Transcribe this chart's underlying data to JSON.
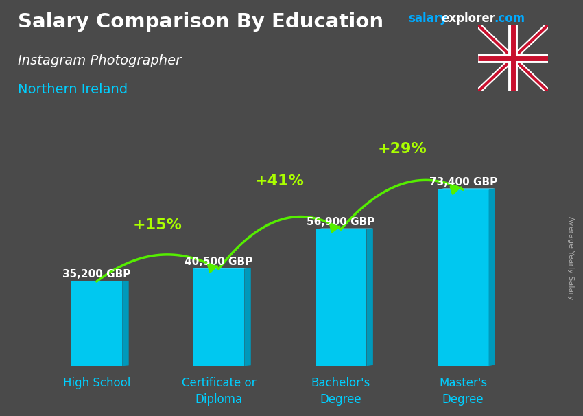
{
  "title": "Salary Comparison By Education",
  "subtitle1": "Instagram Photographer",
  "subtitle2": "Northern Ireland",
  "watermark_salary": "salary",
  "watermark_explorer": "explorer",
  "watermark_com": ".com",
  "ylabel_rotated": "Average Yearly Salary",
  "categories": [
    "High School",
    "Certificate or\nDiploma",
    "Bachelor's\nDegree",
    "Master's\nDegree"
  ],
  "values": [
    35200,
    40500,
    56900,
    73400
  ],
  "labels": [
    "35,200 GBP",
    "40,500 GBP",
    "56,900 GBP",
    "73,400 GBP"
  ],
  "pct_labels": [
    "+15%",
    "+41%",
    "+29%"
  ],
  "bar_color_front": "#00c8f0",
  "bar_color_side": "#0099bb",
  "bar_color_top": "#55e0ff",
  "background_color": "#4a4a4a",
  "title_color": "#ffffff",
  "subtitle1_color": "#ffffff",
  "subtitle2_color": "#00cfff",
  "label_color": "#ffffff",
  "pct_color": "#aaff00",
  "arrow_color": "#55ee00",
  "xtick_color": "#00cfff",
  "watermark_salary_color": "#00aaff",
  "watermark_explorer_color": "#ffffff",
  "watermark_com_color": "#00aaff",
  "ylim": [
    0,
    90000
  ],
  "figsize": [
    8.5,
    6.06
  ],
  "dpi": 100
}
